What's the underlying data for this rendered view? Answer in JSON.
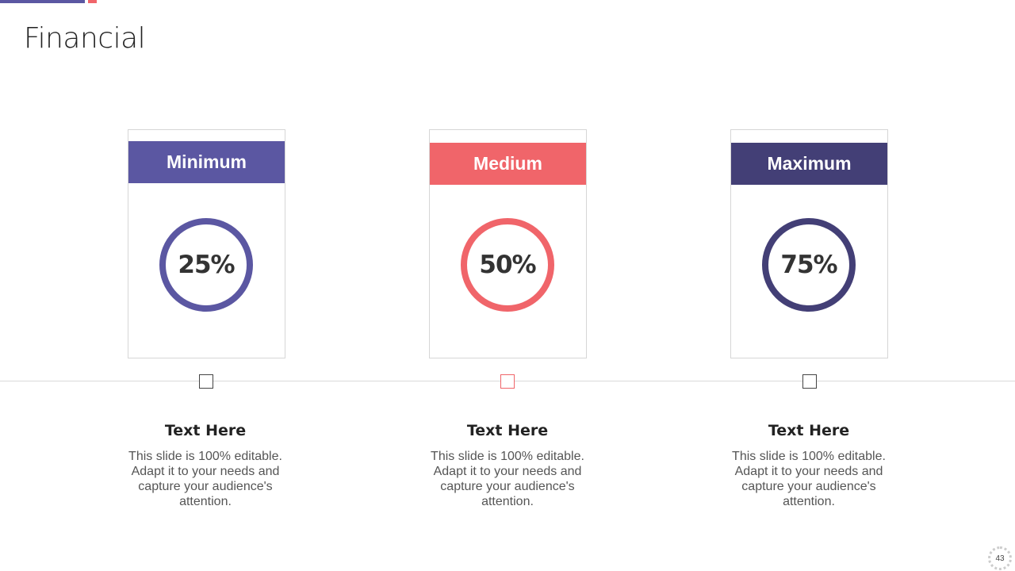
{
  "title": "Financial",
  "colors": {
    "purple": "#5b57a2",
    "coral": "#f0656a",
    "navy": "#433f76"
  },
  "cards": [
    {
      "label": "Minimum",
      "value": "25%",
      "color": "#5b57a2",
      "heading": "Text Here",
      "body": "This slide is 100% editable. Adapt it to your needs and capture your audience's attention."
    },
    {
      "label": "Medium",
      "value": "50%",
      "color": "#f0656a",
      "heading": "Text Here",
      "body": "This slide is 100% editable. Adapt it to your needs and capture your audience's attention."
    },
    {
      "label": "Maximum",
      "value": "75%",
      "color": "#433f76",
      "heading": "Text Here",
      "body": "This slide is 100% editable. Adapt it to your needs and capture your audience's attention."
    }
  ],
  "page_number": "43"
}
